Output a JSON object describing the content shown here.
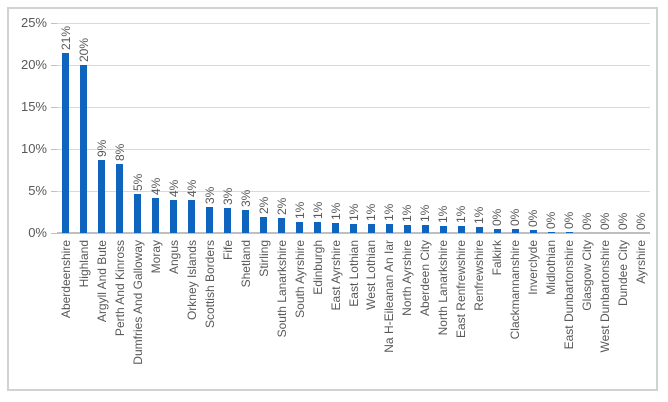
{
  "chart_data": {
    "type": "bar",
    "title": "",
    "categories": [
      "Aberdeenshire",
      "Highland",
      "Argyll And Bute",
      "Perth And Kinross",
      "Dumfries And Galloway",
      "Moray",
      "Angus",
      "Orkney Islands",
      "Scottish Borders",
      "Fife",
      "Shetland",
      "Stirling",
      "South Lanarkshire",
      "South Ayrshire",
      "Edinburgh",
      "East Ayrshire",
      "East Lothian",
      "West Lothian",
      "Na H-Eileanan An Iar",
      "North Ayrshire",
      "Aberdeen City",
      "North Lanarkshire",
      "East Renfrewshire",
      "Renfrewshire",
      "Falkirk",
      "Clackmannanshire",
      "Inverclyde",
      "Midlothian",
      "East Dunbartonshire",
      "Glasgow City",
      "West Dunbartonshire",
      "Dundee City",
      "Ayrshire"
    ],
    "value_labels": [
      "21%",
      "20%",
      "9%",
      "8%",
      "5%",
      "4%",
      "4%",
      "4%",
      "3%",
      "3%",
      "3%",
      "2%",
      "2%",
      "1%",
      "1%",
      "1%",
      "1%",
      "1%",
      "1%",
      "1%",
      "1%",
      "1%",
      "1%",
      "1%",
      "0%",
      "0%",
      "0%",
      "0%",
      "0%",
      "0%",
      "0%",
      "0%",
      "0%"
    ],
    "values": [
      21.4,
      20.0,
      8.7,
      8.2,
      4.6,
      4.2,
      3.9,
      3.9,
      3.1,
      3.0,
      2.7,
      1.9,
      1.8,
      1.3,
      1.25,
      1.15,
      1.1,
      1.1,
      1.05,
      0.95,
      0.9,
      0.85,
      0.8,
      0.75,
      0.45,
      0.45,
      0.4,
      0.15,
      0.15,
      0.0,
      0.0,
      0.0,
      0.0
    ],
    "yticks": [
      "0%",
      "5%",
      "10%",
      "15%",
      "20%",
      "25%"
    ],
    "ytick_values": [
      0,
      5,
      10,
      15,
      20,
      25
    ],
    "ylim": [
      0,
      25
    ],
    "grid": true,
    "legend": "none",
    "bar_color": "#0f64bd",
    "gridline_color": "#d9d9d9",
    "axis_line_color": "#bfbfbf",
    "label_color": "#595959"
  }
}
